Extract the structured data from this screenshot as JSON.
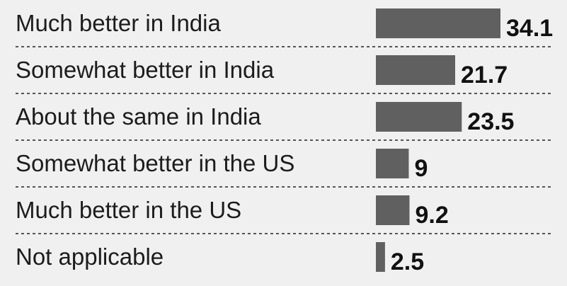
{
  "chart_data": {
    "type": "bar",
    "orientation": "horizontal",
    "categories": [
      "Much better in India",
      "Somewhat better in India",
      "About the same in India",
      "Somewhat better in the US",
      "Much better in the US",
      "Not applicable"
    ],
    "values": [
      34.1,
      21.7,
      23.5,
      9,
      9.2,
      2.5
    ],
    "value_labels": [
      "34.1",
      "21.7",
      "23.5",
      "9",
      "9.2",
      "2.5"
    ],
    "bar_color": "#606060",
    "background_color": "#f0f0f0",
    "grid": false,
    "legend": "none"
  }
}
